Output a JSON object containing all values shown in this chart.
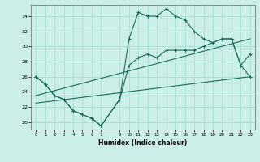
{
  "xlabel": "Humidex (Indice chaleur)",
  "bg_color": "#cceee8",
  "grid_color": "#99ddcc",
  "line_color": "#1a6b5a",
  "xlim": [
    -0.5,
    23.5
  ],
  "ylim": [
    19,
    35.5
  ],
  "yticks": [
    20,
    22,
    24,
    26,
    28,
    30,
    32,
    34
  ],
  "xticks": [
    0,
    1,
    2,
    3,
    4,
    5,
    6,
    7,
    9,
    10,
    11,
    12,
    13,
    14,
    15,
    16,
    17,
    18,
    19,
    20,
    21,
    22,
    23
  ],
  "main_line_x": [
    0,
    1,
    2,
    3,
    4,
    5,
    6,
    7,
    9,
    10,
    11,
    12,
    13,
    14,
    15,
    16,
    17,
    18,
    19,
    20,
    21,
    22,
    23
  ],
  "main_line_y": [
    26.0,
    25.0,
    23.5,
    23.0,
    21.5,
    21.0,
    20.5,
    19.5,
    23.0,
    31.0,
    34.5,
    34.0,
    34.0,
    35.0,
    34.0,
    33.5,
    32.0,
    31.0,
    30.5,
    31.0,
    31.0,
    27.5,
    29.0
  ],
  "line2_x": [
    0,
    1,
    2,
    3,
    4,
    5,
    6,
    7,
    9,
    10,
    11,
    12,
    13,
    14,
    15,
    16,
    17,
    18,
    19,
    20,
    21,
    22,
    23
  ],
  "line2_y": [
    26.0,
    25.0,
    23.5,
    23.0,
    21.5,
    21.0,
    20.5,
    19.5,
    23.0,
    27.5,
    28.5,
    29.0,
    28.5,
    29.5,
    29.5,
    29.5,
    29.5,
    30.0,
    30.5,
    31.0,
    31.0,
    27.5,
    26.0
  ],
  "line3_x": [
    0,
    23
  ],
  "line3_y": [
    23.5,
    31.0
  ],
  "line4_x": [
    0,
    23
  ],
  "line4_y": [
    22.5,
    26.0
  ]
}
